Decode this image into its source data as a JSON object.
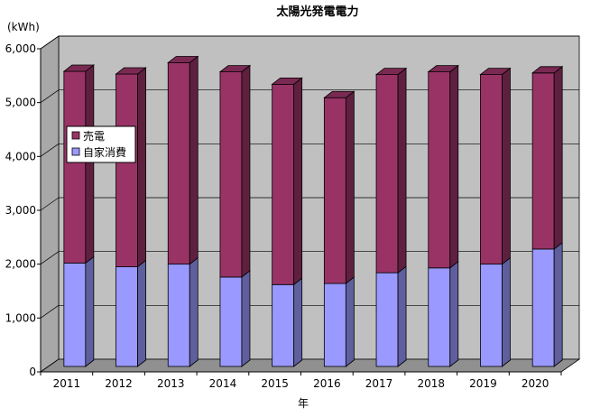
{
  "chart_data": {
    "type": "bar",
    "stacked": true,
    "three_d": true,
    "title": "太陽光発電電力",
    "xlabel": "年",
    "ylabel": "(kWh)",
    "ylim": [
      0,
      6000
    ],
    "yticks": [
      "0",
      "1,000",
      "2,000",
      "3,000",
      "4,000",
      "5,000",
      "6,000"
    ],
    "categories": [
      "2011",
      "2012",
      "2013",
      "2014",
      "2015",
      "2016",
      "2017",
      "2018",
      "2019",
      "2020"
    ],
    "series": [
      {
        "name": "自家消費",
        "color": "#9999ff",
        "values": [
          1920,
          1850,
          1900,
          1660,
          1520,
          1540,
          1740,
          1830,
          1900,
          2180
        ]
      },
      {
        "name": "売電",
        "color": "#993366",
        "values": [
          3560,
          3580,
          3740,
          3810,
          3720,
          3450,
          3680,
          3640,
          3520,
          3270
        ]
      }
    ],
    "legend": {
      "placement": "left",
      "entries": [
        "売電",
        "自家消費"
      ]
    },
    "grid": true,
    "wall_color": "#c0c0c0"
  }
}
